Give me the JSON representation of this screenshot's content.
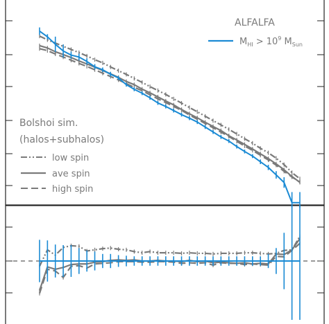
{
  "chart_data": [
    {
      "type": "line",
      "panel": "top",
      "x": [
        1,
        2,
        3,
        4,
        5,
        6,
        7,
        8,
        9,
        10,
        11,
        12,
        13,
        14,
        15,
        16,
        17,
        18,
        19,
        20,
        21,
        22,
        23,
        24,
        25,
        26,
        27,
        28,
        29,
        30,
        31,
        32,
        33,
        34
      ],
      "grid": false,
      "legends": [
        {
          "title": "ALFALFA",
          "entries": [
            {
              "ref": 0,
              "label_parts": {
                "m": "M",
                "hi": "HI",
                "gt": " > 10",
                "exp": "9",
                "msun": " M",
                "sun": "Sun"
              }
            }
          ]
        },
        {
          "title_line1": "Bolshoi sim.",
          "title_line2": "(halos+subhalos)",
          "entries": [
            {
              "ref": 1,
              "label": "low spin"
            },
            {
              "ref": 2,
              "label": "ave spin"
            },
            {
              "ref": 3,
              "label": "high spin"
            }
          ]
        }
      ],
      "ylim": [
        0,
        100
      ],
      "series": [
        {
          "style": "solid",
          "color": "#1a8ad4",
          "errorbars": true,
          "values": [
            91.8,
            88.6,
            84.4,
            80.6,
            78.3,
            77.2,
            74.7,
            71.7,
            70.0,
            67.5,
            65.4,
            61.6,
            59.0,
            56.8,
            54.2,
            51.3,
            49.3,
            47.0,
            44.7,
            42.7,
            40.5,
            37.7,
            34.9,
            32.1,
            29.8,
            26.7,
            23.9,
            21.3,
            18.1,
            14.9,
            10.7,
            6.4,
            -5,
            -5
          ],
          "errors": [
            2.1,
            1.5,
            4.3,
            3.6,
            2.0,
            1.9,
            1.8,
            1.5,
            1.3,
            1.3,
            1.1,
            1.1,
            1.1,
            1.1,
            1.1,
            1.1,
            1.1,
            1.1,
            1.1,
            1.1,
            1.1,
            1.1,
            1.1,
            1.1,
            1.1,
            1.1,
            1.1,
            1.1,
            1.3,
            1.5,
            2.1,
            3.0,
            6.0,
            6.0
          ]
        },
        {
          "style": "dashdot",
          "color": "#7a7a7a",
          "values": [
            89.0,
            86.9,
            85.1,
            83.2,
            81.5,
            79.7,
            77.8,
            75.7,
            73.9,
            71.6,
            69.5,
            67.4,
            65.1,
            62.9,
            60.5,
            58.3,
            56.1,
            53.6,
            51.2,
            48.7,
            46.3,
            43.8,
            41.3,
            38.9,
            36.4,
            33.8,
            31.1,
            28.6,
            25.7,
            23.2,
            20.1,
            16.5,
            12.0,
            8.5
          ]
        },
        {
          "style": "solid",
          "color": "#7a7a7a",
          "values": [
            83.6,
            82.3,
            80.2,
            78.6,
            76.9,
            75.0,
            73.3,
            71.5,
            69.6,
            67.7,
            65.7,
            63.4,
            61.6,
            59.1,
            57.0,
            54.7,
            52.4,
            50.2,
            47.6,
            45.2,
            42.9,
            40.4,
            38.0,
            35.7,
            32.8,
            30.4,
            27.9,
            25.3,
            22.6,
            19.9,
            16.9,
            13.6,
            9.8,
            6.5
          ]
        },
        {
          "style": "dashed",
          "color": "#7a7a7a",
          "values": [
            81.9,
            80.8,
            78.9,
            77.2,
            75.4,
            73.6,
            71.9,
            70.0,
            68.1,
            66.2,
            64.3,
            62.2,
            60.1,
            58.2,
            55.9,
            53.6,
            51.5,
            49.3,
            47.1,
            44.5,
            42.1,
            39.7,
            37.3,
            34.8,
            32.4,
            29.6,
            27.0,
            24.5,
            21.8,
            19.1,
            16.2,
            12.7,
            9.5,
            6.6
          ]
        }
      ]
    },
    {
      "type": "line",
      "panel": "bottom",
      "x": [
        1,
        2,
        3,
        4,
        5,
        6,
        7,
        8,
        9,
        10,
        11,
        12,
        13,
        14,
        15,
        16,
        17,
        18,
        19,
        20,
        21,
        22,
        23,
        24,
        25,
        26,
        27,
        28,
        29,
        30,
        31,
        32,
        33,
        34
      ],
      "grid": false,
      "reference_line": 0,
      "ylim": [
        -1,
        1
      ],
      "series": [
        {
          "style": "solid",
          "color": "#1a8ad4",
          "errorbars": true,
          "values": [
            0,
            0,
            0,
            0,
            0,
            0,
            0,
            0,
            0,
            0,
            0,
            0,
            0,
            0,
            0,
            0,
            0,
            0,
            0,
            0,
            0,
            0,
            0,
            0,
            0,
            0,
            0,
            0,
            0,
            0,
            0,
            0,
            0,
            0
          ],
          "errors": [
            0.36,
            0.35,
            0.28,
            0.27,
            0.27,
            0.22,
            0.18,
            0.16,
            0.12,
            0.12,
            0.1,
            0.09,
            0.08,
            0.08,
            0.08,
            0.08,
            0.08,
            0.08,
            0.08,
            0.08,
            0.08,
            0.08,
            0.08,
            0.08,
            0.08,
            0.08,
            0.08,
            0.08,
            0.08,
            0.12,
            0.22,
            0.48,
            1.0,
            1.0
          ]
        },
        {
          "style": "dashdot",
          "color": "#7a7a7a",
          "values": [
            -0.09,
            0.19,
            0.1,
            0.23,
            0.26,
            0.25,
            0.17,
            0.19,
            0.21,
            0.22,
            0.2,
            0.19,
            0.16,
            0.14,
            0.16,
            0.14,
            0.14,
            0.14,
            0.13,
            0.14,
            0.13,
            0.13,
            0.12,
            0.13,
            0.13,
            0.13,
            0.14,
            0.14,
            0.13,
            0.12,
            0.13,
            0.18,
            0.19,
            0.42
          ]
        },
        {
          "style": "solid",
          "color": "#7a7a7a",
          "values": [
            -0.5,
            -0.1,
            -0.14,
            -0.11,
            -0.06,
            -0.05,
            -0.05,
            -0.02,
            -0.01,
            0.01,
            0.02,
            0.01,
            0.02,
            0.0,
            0.0,
            0.01,
            0.0,
            0.0,
            -0.01,
            0.01,
            -0.01,
            0.0,
            -0.03,
            -0.02,
            -0.03,
            -0.04,
            -0.03,
            -0.05,
            -0.04,
            -0.05,
            0.12,
            0.11,
            0.19,
            0.38
          ]
        },
        {
          "style": "dashed",
          "color": "#7a7a7a",
          "values": [
            -0.55,
            -0.14,
            -0.17,
            -0.28,
            -0.09,
            -0.08,
            -0.12,
            -0.05,
            -0.04,
            -0.03,
            -0.01,
            -0.01,
            -0.01,
            -0.02,
            -0.02,
            -0.01,
            -0.01,
            -0.02,
            -0.04,
            -0.03,
            -0.04,
            -0.03,
            -0.07,
            -0.03,
            -0.04,
            -0.04,
            -0.06,
            -0.05,
            -0.06,
            -0.07,
            0.08,
            0.07,
            0.18,
            0.3
          ]
        }
      ]
    }
  ]
}
